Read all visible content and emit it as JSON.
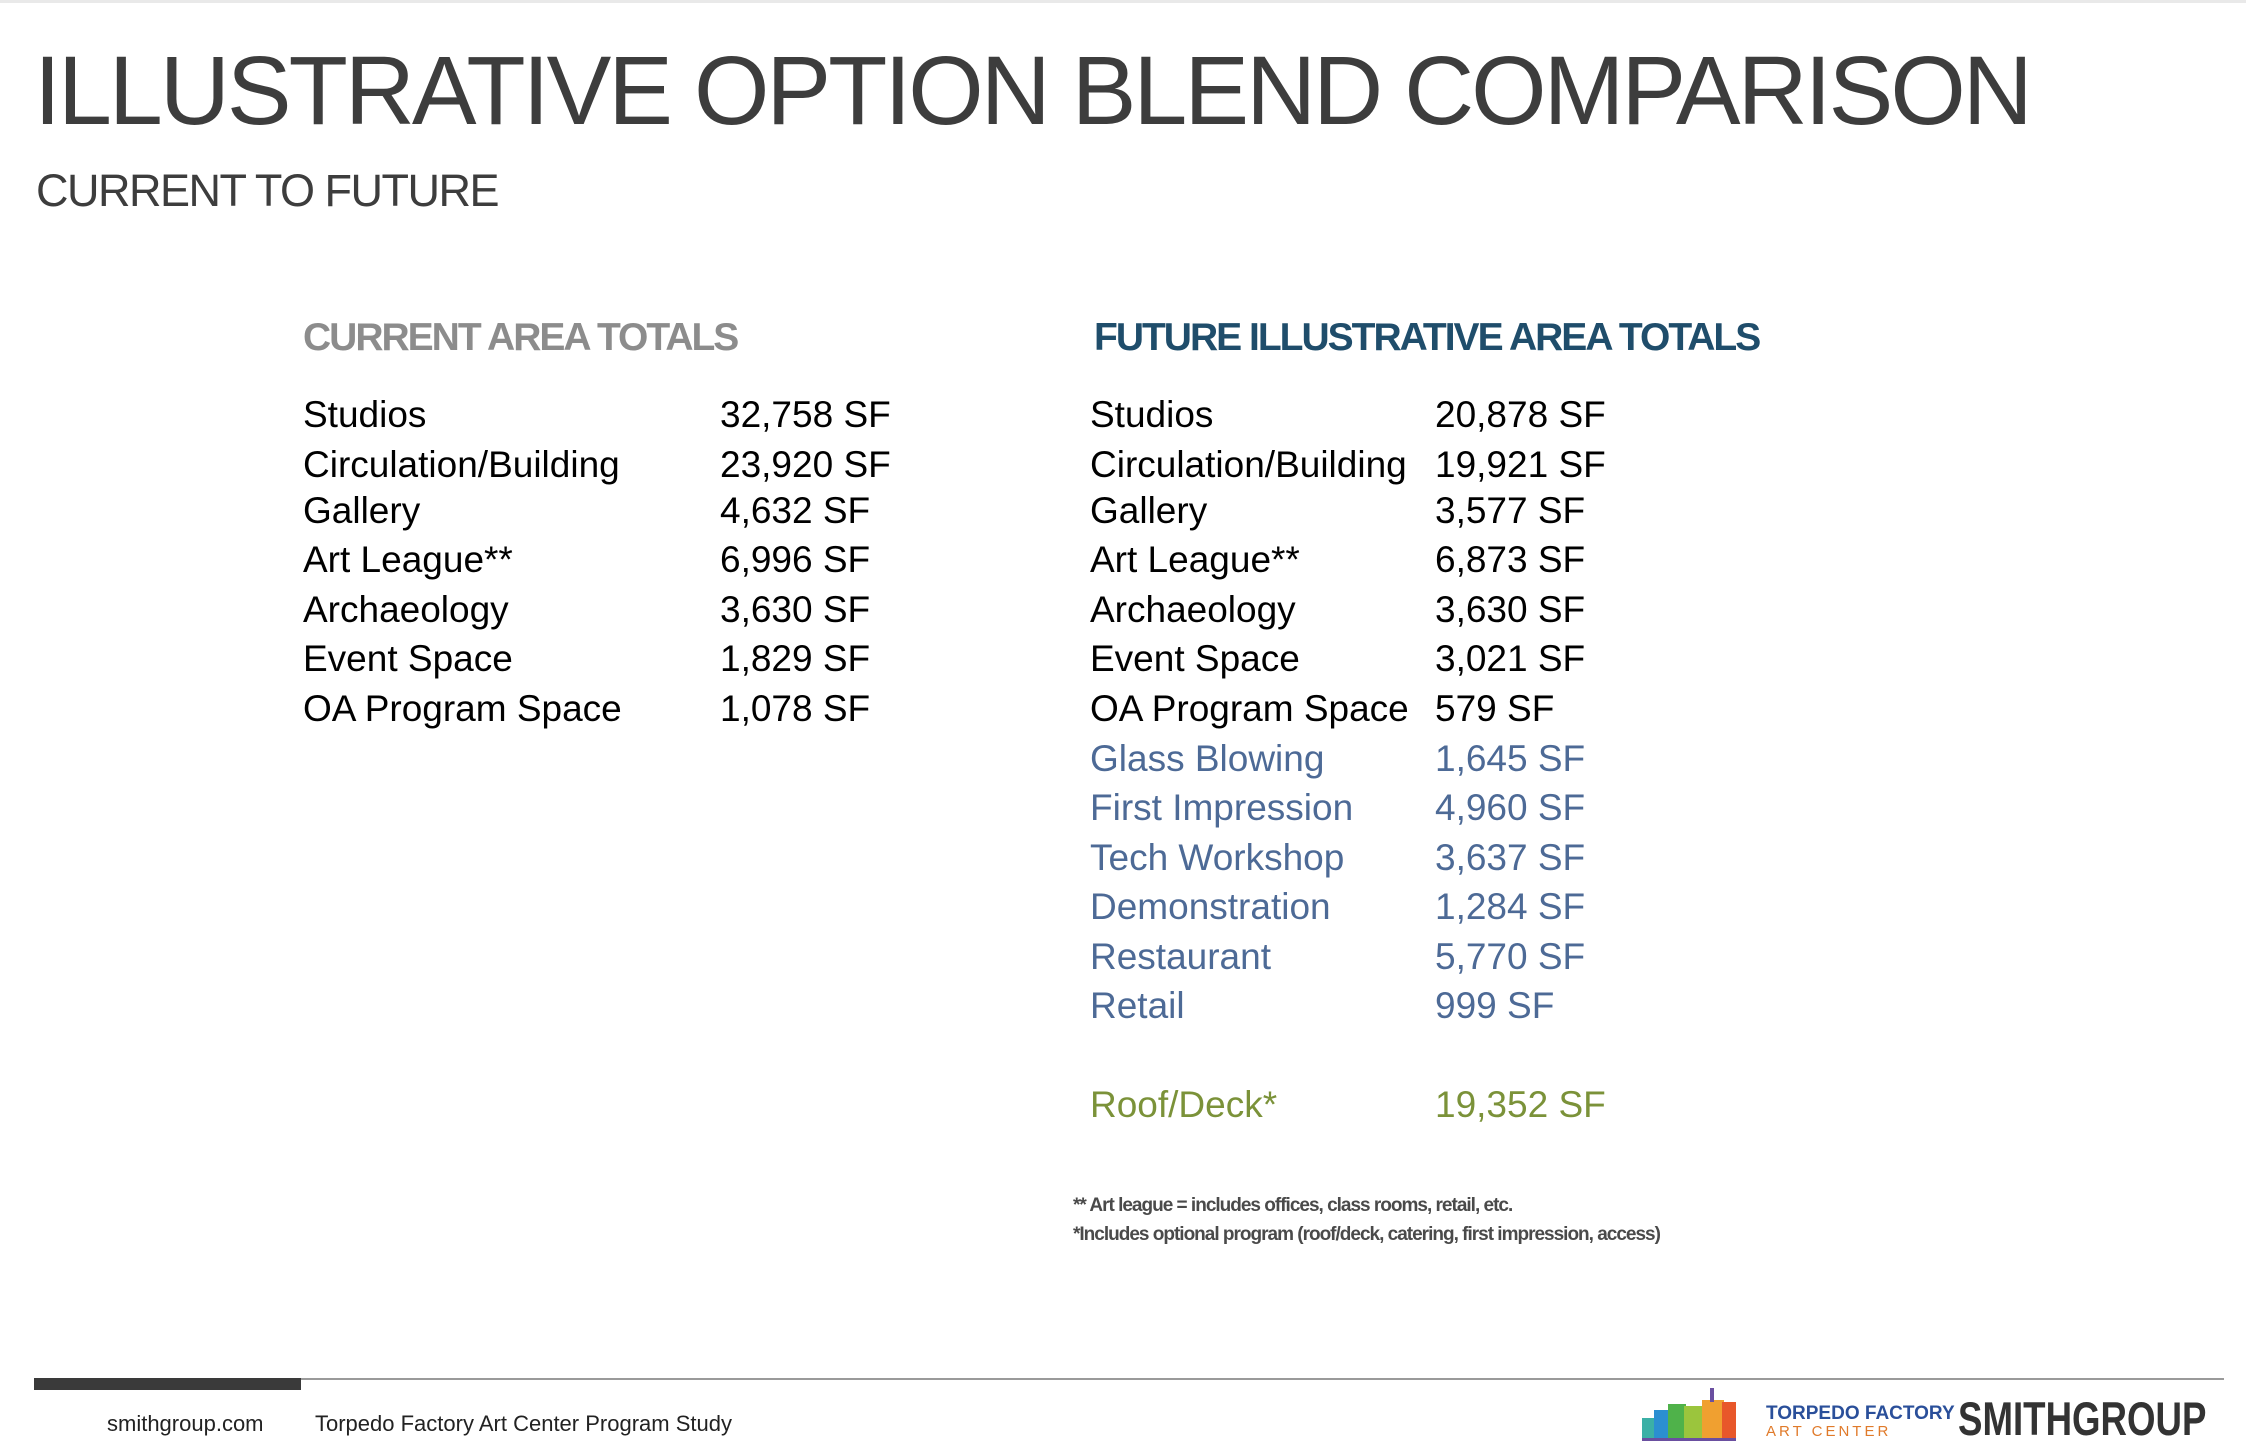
{
  "header": {
    "title": "ILLUSTRATIVE OPTION BLEND COMPARISON",
    "subtitle": "CURRENT TO FUTURE"
  },
  "current": {
    "heading": "CURRENT AREA TOTALS",
    "rows": [
      {
        "label": "Studios",
        "value": "32,758 SF"
      },
      {
        "label": "Circulation/Building",
        "value": "23,920 SF"
      },
      {
        "label": "Gallery",
        "value": "4,632 SF"
      },
      {
        "label": "Art League**",
        "value": "6,996 SF"
      },
      {
        "label": "Archaeology",
        "value": "3,630 SF"
      },
      {
        "label": "Event Space",
        "value": "1,829 SF"
      },
      {
        "label": "OA Program Space",
        "value": "1,078 SF"
      }
    ]
  },
  "future": {
    "heading": "FUTURE ILLUSTRATIVE AREA TOTALS",
    "rows": [
      {
        "label": "Studios",
        "value": "20,878 SF"
      },
      {
        "label": "Circulation/Building",
        "value": "19,921 SF"
      },
      {
        "label": "Gallery",
        "value": "3,577 SF"
      },
      {
        "label": "Art League**",
        "value": "6,873 SF"
      },
      {
        "label": "Archaeology",
        "value": "3,630 SF"
      },
      {
        "label": "Event Space",
        "value": "3,021 SF"
      },
      {
        "label": "OA Program Space",
        "value": "579 SF"
      },
      {
        "label": "Glass Blowing",
        "value": "1,645 SF"
      },
      {
        "label": "First Impression",
        "value": "4,960 SF"
      },
      {
        "label": "Tech Workshop",
        "value": "3,637 SF"
      },
      {
        "label": "Demonstration",
        "value": "1,284 SF"
      },
      {
        "label": "Restaurant",
        "value": "5,770 SF"
      },
      {
        "label": "Retail",
        "value": "999 SF"
      },
      {
        "label": "Roof/Deck*",
        "value": "19,352 SF"
      }
    ]
  },
  "notes": {
    "art_league": "** Art league = includes offices, class rooms, retail, etc.",
    "optional": "*Includes optional program (roof/deck, catering, first impression, access)"
  },
  "footer": {
    "website": "smithgroup.com",
    "project": "Torpedo Factory Art Center Program Study",
    "tf_logo_line1": "TORPEDO FACTORY",
    "tf_logo_line2": "ART CENTER",
    "firm_logo": "SMITHGROUP"
  },
  "colors": {
    "title": "#3d3d3d",
    "current_heading": "#8c8c8c",
    "future_heading": "#1f4d6b",
    "new_program": "#4d6a96",
    "roof_deck": "#7b9239"
  }
}
